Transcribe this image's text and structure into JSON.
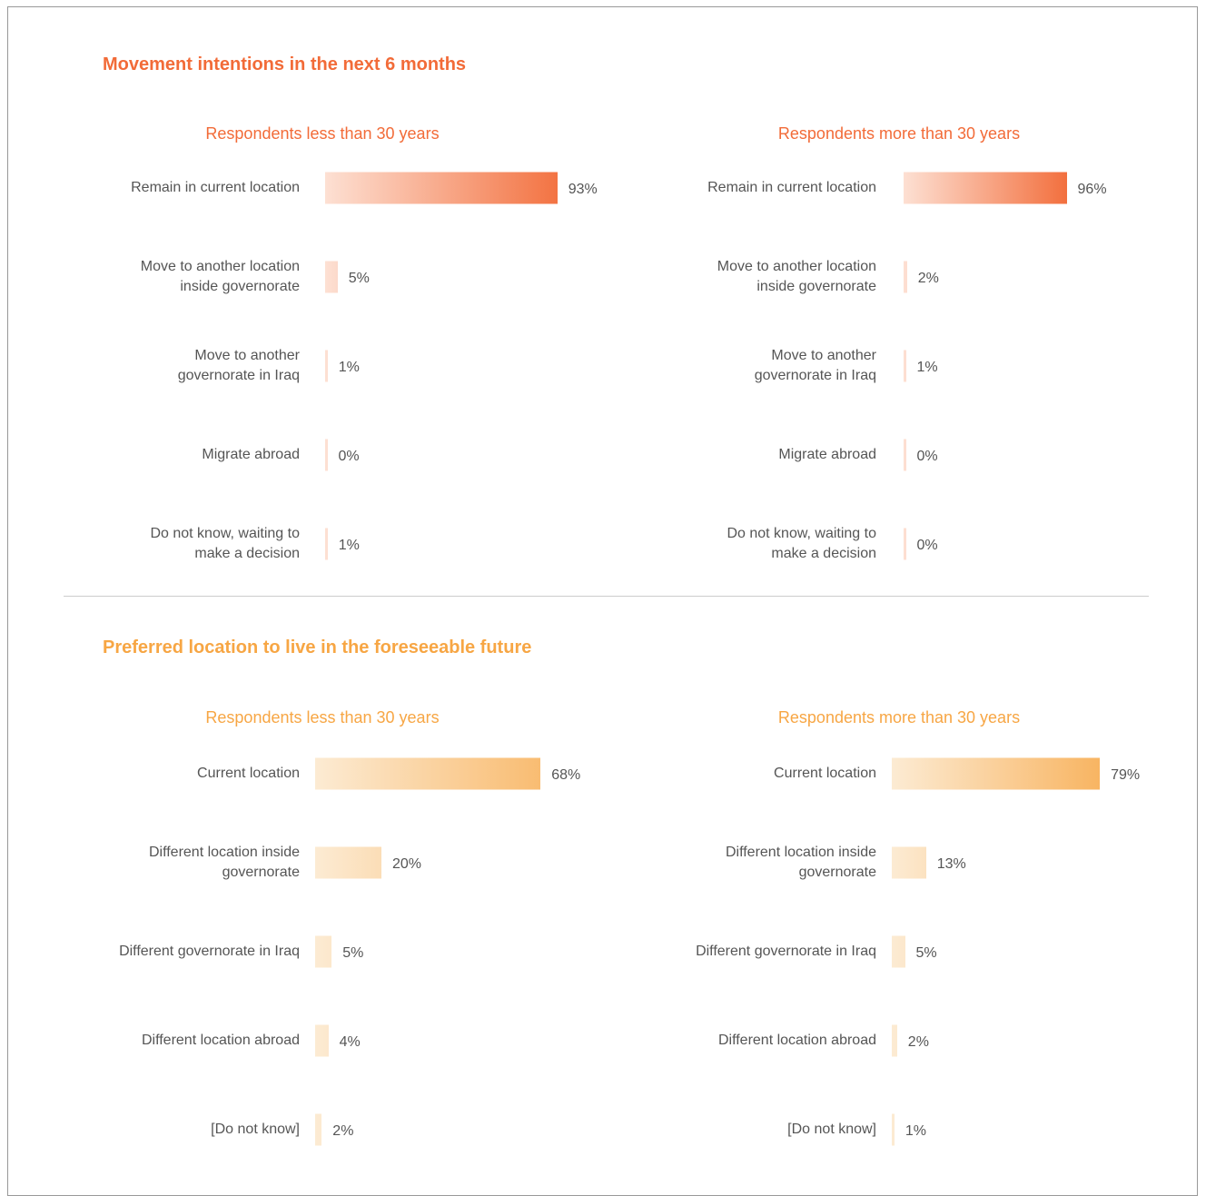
{
  "sections": [
    {
      "title": "Movement intentions in the next 6 months",
      "color": "#f26b38",
      "light": "#fde0d3",
      "chart_data": [
        {
          "type": "bar",
          "title": "Respondents less than 30 years",
          "categories": [
            "Remain in current location",
            "Move to another location inside governorate",
            "Move to another governorate in Iraq",
            "Migrate abroad",
            "Do not know, waiting to make a decision"
          ],
          "values": [
            93,
            5,
            1,
            0,
            1
          ],
          "value_labels": [
            "93%",
            "5%",
            "1%",
            "0%",
            "1%"
          ]
        },
        {
          "type": "bar",
          "title": "Respondents more than 30 years",
          "categories": [
            "Remain in current location",
            "Move to another location inside governorate",
            "Move to another governorate in Iraq",
            "Migrate abroad",
            "Do not know, waiting to make a decision"
          ],
          "values": [
            96,
            2,
            1,
            0,
            0
          ],
          "value_labels": [
            "96%",
            "2%",
            "1%",
            "0%",
            "0%"
          ]
        }
      ]
    },
    {
      "title": "Preferred location to live in the foreseeable future",
      "color": "#f7a644",
      "light": "#fcebd3",
      "chart_data": [
        {
          "type": "bar",
          "title": "Respondents less than 30 years",
          "categories": [
            "Current location",
            "Different location inside governorate",
            "Different governorate in Iraq",
            "Different location abroad",
            "[Do not know]"
          ],
          "values": [
            68,
            20,
            5,
            4,
            2
          ],
          "value_labels": [
            "68%",
            "20%",
            "5%",
            "4%",
            "2%"
          ]
        },
        {
          "type": "bar",
          "title": "Respondents more than 30 years",
          "categories": [
            "Current location",
            "Different location inside governorate",
            "Different governorate in Iraq",
            "Different location abroad",
            "[Do not know]"
          ],
          "values": [
            79,
            13,
            5,
            2,
            1
          ],
          "value_labels": [
            "79%",
            "13%",
            "5%",
            "2%",
            "1%"
          ]
        }
      ]
    }
  ]
}
